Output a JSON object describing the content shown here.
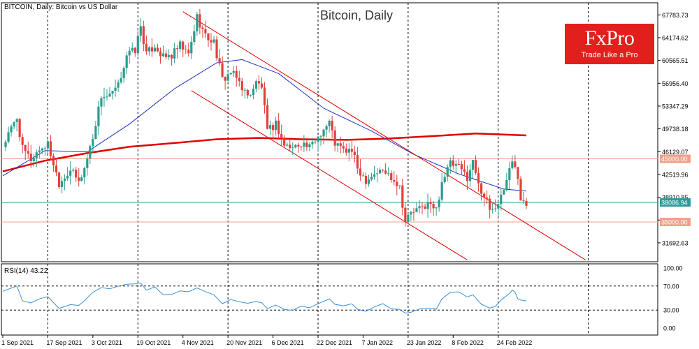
{
  "chart_data": [
    {
      "type": "candlestick",
      "header": "BITCOIN, Daily:  Bitcoin vs US Dollar",
      "title": "Bitcoin, Daily",
      "ylim": [
        28700,
        69700
      ],
      "price_ticks": [
        "67783.73",
        "64174.62",
        "60565.51",
        "56956.40",
        "53347.29",
        "49738.18",
        "46129.07",
        "42519.96",
        "38910.85",
        "35301.74",
        "31692.63"
      ],
      "date_ticks": [
        "1 Sep 2021",
        "17 Sep 2021",
        "3 Oct 2021",
        "19 Oct 2021",
        "4 Nov 2021",
        "20 Nov 2021",
        "6 Dec 2021",
        "22 Dec 2021",
        "7 Jan 2022",
        "23 Jan 2022",
        "8 Feb 2022",
        "24 Feb 2022"
      ],
      "date_start": "2021-09-01",
      "date_end": "2022-03-06",
      "close_path": [
        [
          "2021-09-01",
          47000
        ],
        [
          "2021-09-06",
          51500
        ],
        [
          "2021-09-08",
          46500
        ],
        [
          "2021-09-11",
          44900
        ],
        [
          "2021-09-14",
          46500
        ],
        [
          "2021-09-17",
          47300
        ],
        [
          "2021-09-21",
          41200
        ],
        [
          "2021-09-25",
          43300
        ],
        [
          "2021-09-28",
          41300
        ],
        [
          "2021-09-30",
          43500
        ],
        [
          "2021-10-03",
          48500
        ],
        [
          "2021-10-06",
          55000
        ],
        [
          "2021-10-09",
          54800
        ],
        [
          "2021-10-12",
          56500
        ],
        [
          "2021-10-15",
          61500
        ],
        [
          "2021-10-18",
          62200
        ],
        [
          "2021-10-20",
          66000
        ],
        [
          "2021-10-22",
          61500
        ],
        [
          "2021-10-25",
          63000
        ],
        [
          "2021-10-28",
          61000
        ],
        [
          "2021-10-31",
          61300
        ],
        [
          "2021-11-03",
          62900
        ],
        [
          "2021-11-06",
          61400
        ],
        [
          "2021-11-09",
          67500
        ],
        [
          "2021-11-12",
          64400
        ],
        [
          "2021-11-15",
          63500
        ],
        [
          "2021-11-18",
          57500
        ],
        [
          "2021-11-21",
          58700
        ],
        [
          "2021-11-24",
          57200
        ],
        [
          "2021-11-27",
          54800
        ],
        [
          "2021-11-30",
          57000
        ],
        [
          "2021-12-02",
          56500
        ],
        [
          "2021-12-04",
          49200
        ],
        [
          "2021-12-07",
          50600
        ],
        [
          "2021-12-10",
          47200
        ],
        [
          "2021-12-13",
          46700
        ],
        [
          "2021-12-16",
          47600
        ],
        [
          "2021-12-19",
          46700
        ],
        [
          "2021-12-22",
          48600
        ],
        [
          "2021-12-26",
          50800
        ],
        [
          "2021-12-28",
          47500
        ],
        [
          "2021-12-31",
          46300
        ],
        [
          "2022-01-03",
          46300
        ],
        [
          "2022-01-05",
          43500
        ],
        [
          "2022-01-08",
          41700
        ],
        [
          "2022-01-11",
          42700
        ],
        [
          "2022-01-14",
          43100
        ],
        [
          "2022-01-17",
          42200
        ],
        [
          "2022-01-20",
          40700
        ],
        [
          "2022-01-22",
          35100
        ],
        [
          "2022-01-24",
          36500
        ],
        [
          "2022-01-27",
          37000
        ],
        [
          "2022-01-30",
          37900
        ],
        [
          "2022-02-02",
          36900
        ],
        [
          "2022-02-04",
          41500
        ],
        [
          "2022-02-07",
          44200
        ],
        [
          "2022-02-10",
          43600
        ],
        [
          "2022-02-13",
          42200
        ],
        [
          "2022-02-15",
          44500
        ],
        [
          "2022-02-18",
          40000
        ],
        [
          "2022-02-21",
          37000
        ],
        [
          "2022-02-23",
          37200
        ],
        [
          "2022-02-25",
          39100
        ],
        [
          "2022-02-28",
          43200
        ],
        [
          "2022-03-01",
          44400
        ],
        [
          "2022-03-02",
          43900
        ],
        [
          "2022-03-03",
          42400
        ],
        [
          "2022-03-04",
          39100
        ],
        [
          "2022-03-06",
          38100
        ]
      ],
      "series": [
        {
          "color": "#e00000",
          "points": [
            [
              "2021-09-01",
              43000
            ],
            [
              "2021-09-16",
              44700
            ],
            [
              "2021-10-01",
              45900
            ],
            [
              "2021-10-16",
              46900
            ],
            [
              "2021-11-01",
              47500
            ],
            [
              "2021-11-16",
              48100
            ],
            [
              "2021-12-01",
              48300
            ],
            [
              "2021-12-16",
              48100
            ],
            [
              "2022-01-01",
              48000
            ],
            [
              "2022-01-16",
              48200
            ],
            [
              "2022-02-01",
              48600
            ],
            [
              "2022-02-16",
              49000
            ],
            [
              "2022-03-06",
              48700
            ]
          ]
        },
        {
          "color": "#2030c8",
          "points": [
            [
              "2021-09-01",
              42300
            ],
            [
              "2021-09-16",
              46300
            ],
            [
              "2021-10-01",
              46100
            ],
            [
              "2021-10-16",
              50500
            ],
            [
              "2021-11-01",
              56100
            ],
            [
              "2021-11-16",
              60200
            ],
            [
              "2021-11-25",
              60700
            ],
            [
              "2021-12-08",
              58500
            ],
            [
              "2021-12-24",
              53000
            ],
            [
              "2022-01-10",
              49400
            ],
            [
              "2022-01-25",
              45700
            ],
            [
              "2022-02-10",
              42600
            ],
            [
              "2022-02-26",
              40200
            ],
            [
              "2022-03-06",
              39900
            ]
          ]
        }
      ],
      "channel": [
        {
          "from": [
            "2021-11-04",
            68300
          ],
          "to": [
            "2022-03-27",
            29000
          ]
        },
        {
          "from": [
            "2021-11-07",
            55800
          ],
          "to": [
            "2022-02-13",
            29000
          ]
        }
      ],
      "levels": [
        {
          "value": 45000,
          "label": "45000.00",
          "color": "#f1a08a"
        },
        {
          "value": 35000,
          "label": "35000.00",
          "color": "#f1a08a"
        }
      ],
      "current_price": {
        "value": "38086.94",
        "level": 38087,
        "color": "#2f9a9a"
      }
    },
    {
      "type": "line",
      "label": "RSI(14) 43.22",
      "ylim": [
        0,
        100
      ],
      "y_ticks": [
        "100.00",
        "70.00",
        "30.00",
        "0.00"
      ],
      "levels": [
        70,
        30
      ],
      "color": "#3a8fd6",
      "values": [
        [
          "2021-09-01",
          62
        ],
        [
          "2021-09-06",
          70
        ],
        [
          "2021-09-08",
          45
        ],
        [
          "2021-09-11",
          40
        ],
        [
          "2021-09-14",
          48
        ],
        [
          "2021-09-17",
          50
        ],
        [
          "2021-09-21",
          33
        ],
        [
          "2021-09-25",
          42
        ],
        [
          "2021-09-28",
          38
        ],
        [
          "2021-09-30",
          45
        ],
        [
          "2021-10-03",
          60
        ],
        [
          "2021-10-06",
          70
        ],
        [
          "2021-10-09",
          68
        ],
        [
          "2021-10-12",
          70
        ],
        [
          "2021-10-15",
          74
        ],
        [
          "2021-10-18",
          72
        ],
        [
          "2021-10-20",
          76
        ],
        [
          "2021-10-22",
          62
        ],
        [
          "2021-10-25",
          66
        ],
        [
          "2021-10-28",
          58
        ],
        [
          "2021-10-31",
          58
        ],
        [
          "2021-11-03",
          62
        ],
        [
          "2021-11-06",
          58
        ],
        [
          "2021-11-09",
          68
        ],
        [
          "2021-11-12",
          60
        ],
        [
          "2021-11-15",
          57
        ],
        [
          "2021-11-18",
          43
        ],
        [
          "2021-11-21",
          46
        ],
        [
          "2021-11-24",
          43
        ],
        [
          "2021-11-27",
          39
        ],
        [
          "2021-11-30",
          45
        ],
        [
          "2021-12-02",
          44
        ],
        [
          "2021-12-04",
          30
        ],
        [
          "2021-12-07",
          36
        ],
        [
          "2021-12-10",
          32
        ],
        [
          "2021-12-13",
          32
        ],
        [
          "2021-12-16",
          35
        ],
        [
          "2021-12-19",
          34
        ],
        [
          "2021-12-22",
          42
        ],
        [
          "2021-12-26",
          48
        ],
        [
          "2021-12-28",
          40
        ],
        [
          "2021-12-31",
          38
        ],
        [
          "2022-01-03",
          39
        ],
        [
          "2022-01-05",
          34
        ],
        [
          "2022-01-08",
          30
        ],
        [
          "2022-01-11",
          36
        ],
        [
          "2022-01-14",
          38
        ],
        [
          "2022-01-17",
          34
        ],
        [
          "2022-01-20",
          30
        ],
        [
          "2022-01-22",
          22
        ],
        [
          "2022-01-24",
          27
        ],
        [
          "2022-01-27",
          30
        ],
        [
          "2022-01-30",
          34
        ],
        [
          "2022-02-02",
          32
        ],
        [
          "2022-02-04",
          48
        ],
        [
          "2022-02-07",
          62
        ],
        [
          "2022-02-10",
          58
        ],
        [
          "2022-02-13",
          50
        ],
        [
          "2022-02-15",
          57
        ],
        [
          "2022-02-18",
          42
        ],
        [
          "2022-02-21",
          35
        ],
        [
          "2022-02-23",
          38
        ],
        [
          "2022-02-25",
          44
        ],
        [
          "2022-02-28",
          58
        ],
        [
          "2022-03-01",
          62
        ],
        [
          "2022-03-02",
          57
        ],
        [
          "2022-03-03",
          50
        ],
        [
          "2022-03-04",
          44
        ],
        [
          "2022-03-06",
          43
        ]
      ]
    }
  ],
  "logo": {
    "brand": "FxPro",
    "tagline": "Trade Like a Pro"
  }
}
